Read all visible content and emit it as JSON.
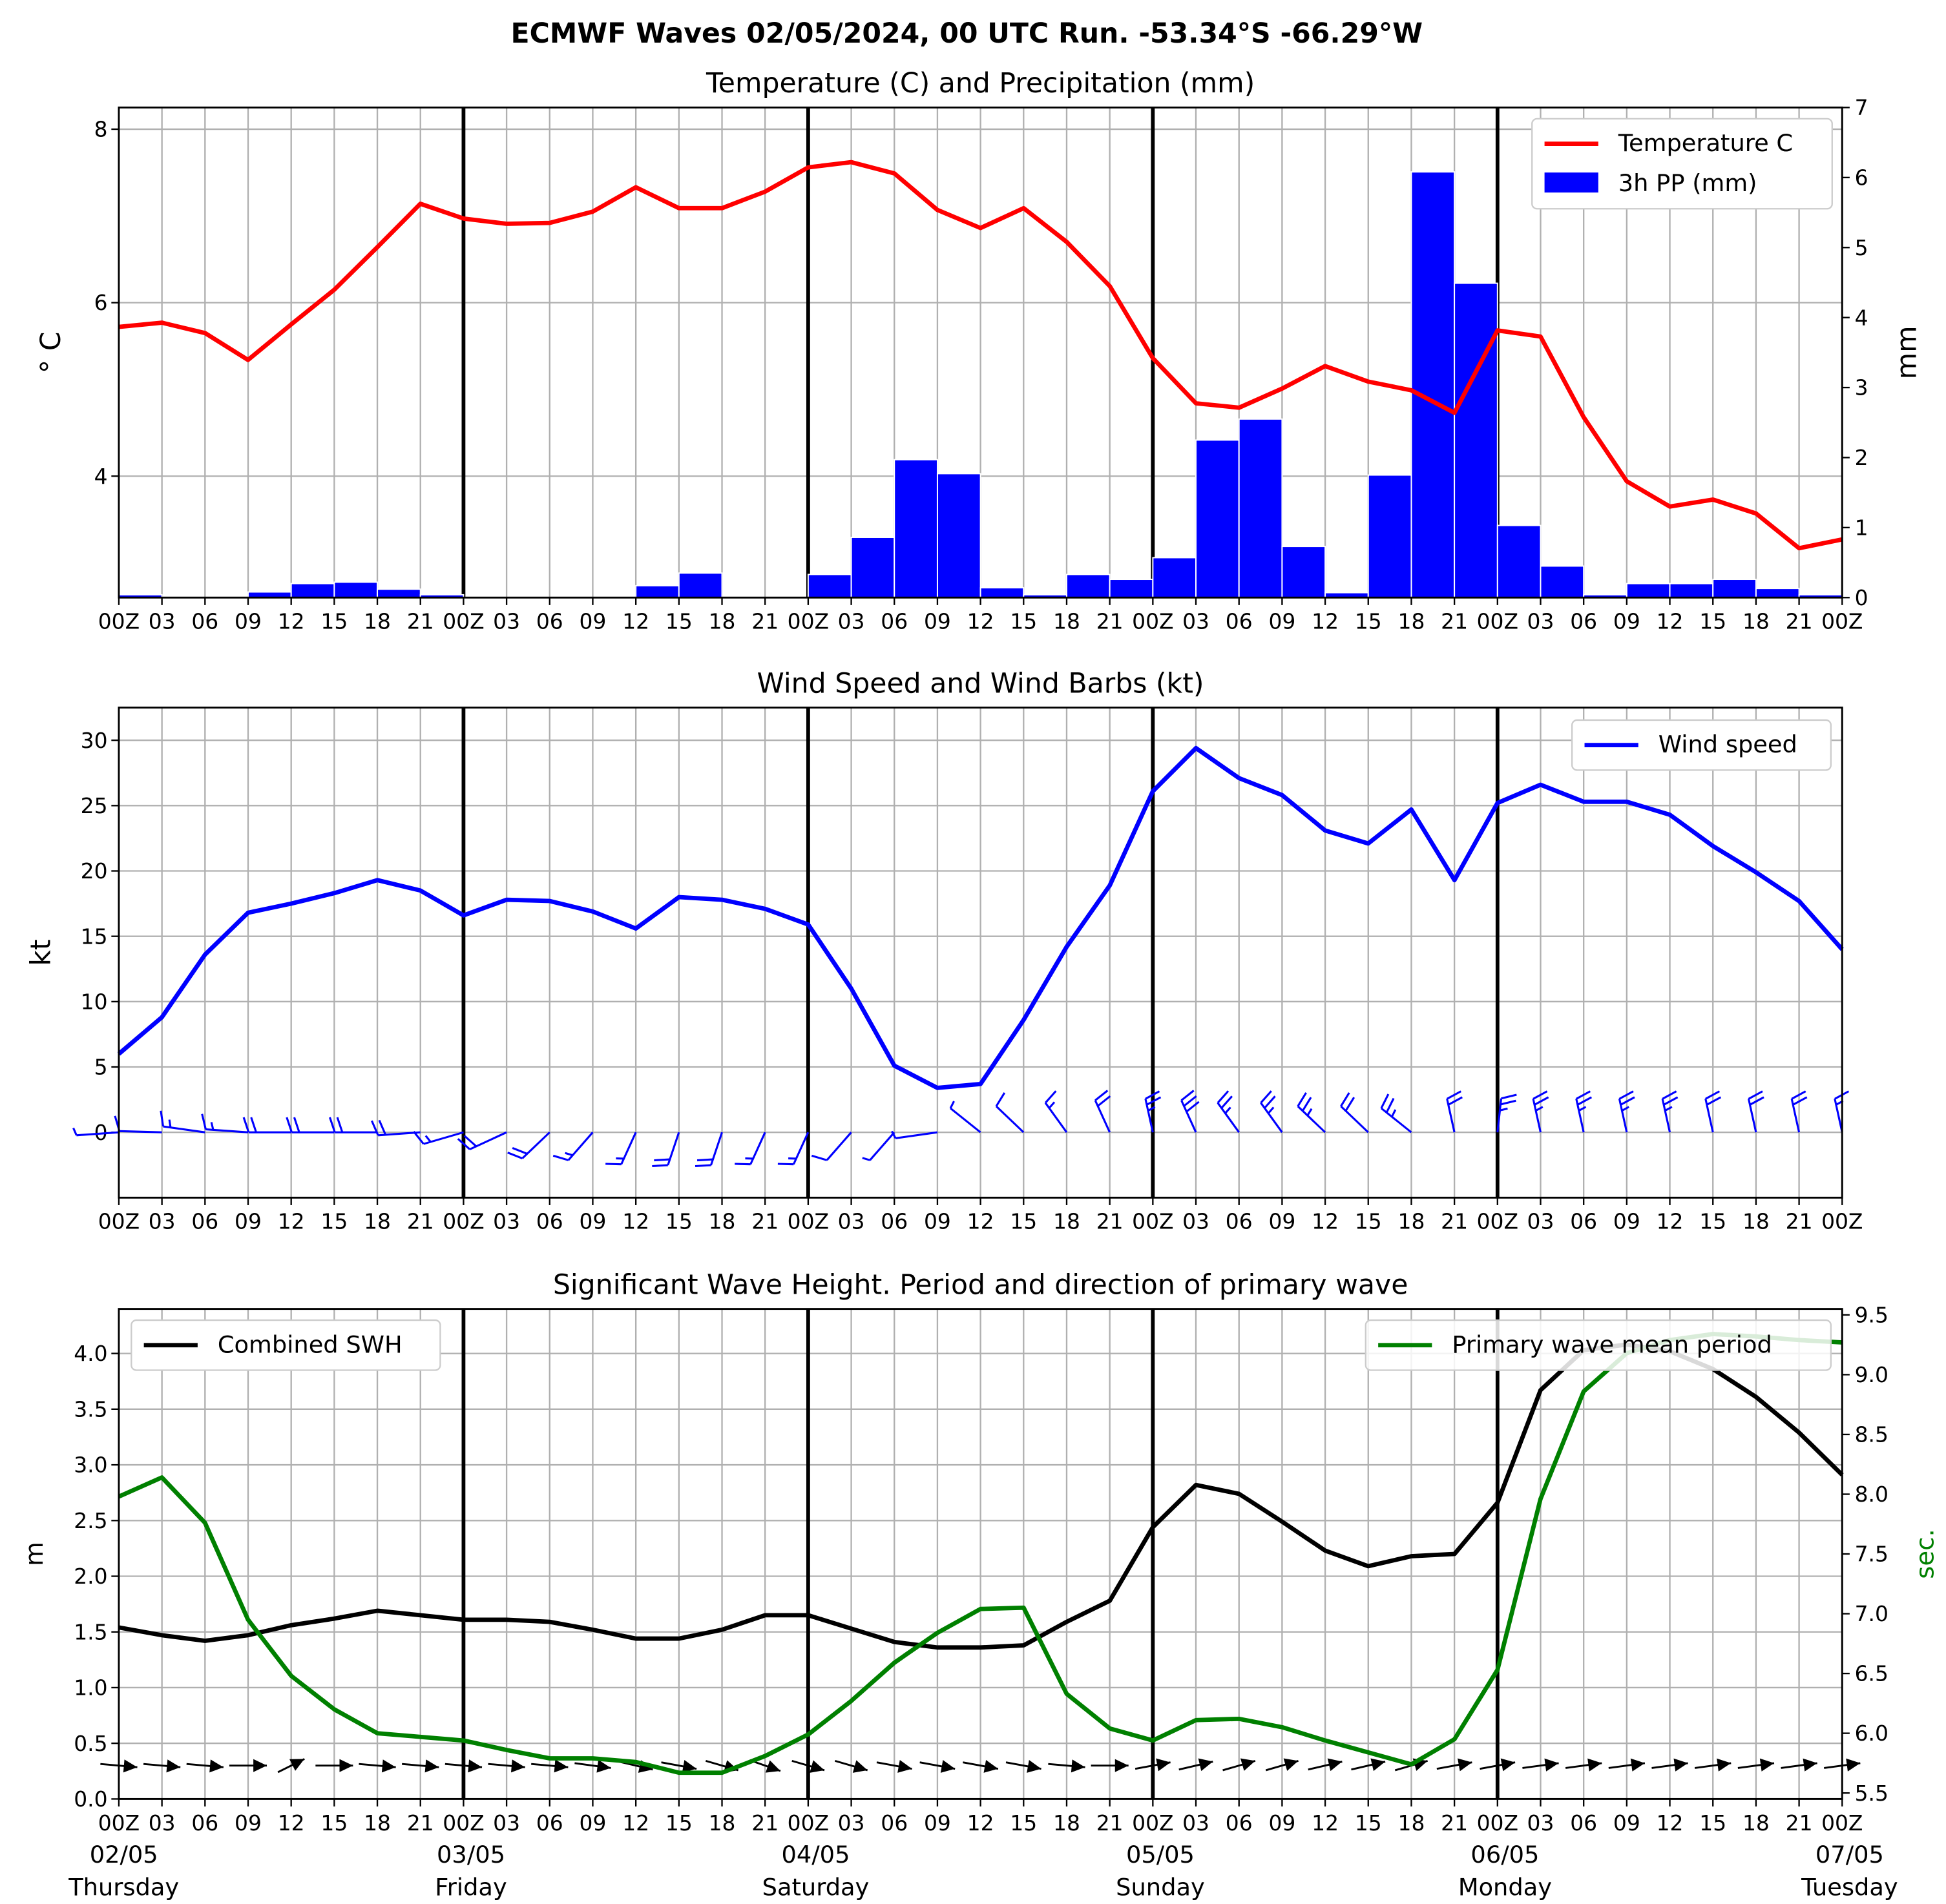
{
  "figure_title": "ECMWF Waves 02/05/2024, 00 UTC Run. -53.34°S -66.29°W",
  "hour_labels": [
    "00Z",
    "03",
    "06",
    "09",
    "12",
    "15",
    "18",
    "21",
    "00Z",
    "03",
    "06",
    "09",
    "12",
    "15",
    "18",
    "21",
    "00Z",
    "03",
    "06",
    "09",
    "12",
    "15",
    "18",
    "21",
    "00Z",
    "03",
    "06",
    "09",
    "12",
    "15",
    "18",
    "21",
    "00Z",
    "03",
    "06",
    "09",
    "12",
    "15",
    "18",
    "21",
    "00Z"
  ],
  "date_labels": [
    {
      "date": "02/05",
      "day": "Thursday"
    },
    {
      "date": "03/05",
      "day": "Friday"
    },
    {
      "date": "04/05",
      "day": "Saturday"
    },
    {
      "date": "05/05",
      "day": "Sunday"
    },
    {
      "date": "06/05",
      "day": "Monday"
    },
    {
      "date": "07/05",
      "day": "Tuesday"
    }
  ],
  "colors": {
    "temperature": "#ff0000",
    "precip": "#0000ff",
    "wind": "#0000ff",
    "swh": "#000000",
    "period": "#008000",
    "grid": "#b0b0b0"
  },
  "chart_data": [
    {
      "type": "line",
      "title": "Temperature (C) and Precipitation (mm)",
      "x_hours": [
        0,
        3,
        6,
        9,
        12,
        15,
        18,
        21,
        24,
        27,
        30,
        33,
        36,
        39,
        42,
        45,
        48,
        51,
        54,
        57,
        60,
        63,
        66,
        69,
        72,
        75,
        78,
        81,
        84,
        87,
        90,
        93,
        96,
        99,
        102,
        105,
        108,
        111,
        114,
        117,
        120
      ],
      "ylabel": "$^\\circ$C",
      "ylabel_display": "° C",
      "ylim": [
        2.6,
        8.25
      ],
      "yticks": [
        4,
        6,
        8
      ],
      "y2label": "mm",
      "y2lim": [
        0,
        7
      ],
      "y2ticks": [
        0,
        1,
        2,
        3,
        4,
        5,
        6,
        7
      ],
      "legend": "top-right",
      "series": [
        {
          "name": "Temperature C",
          "kind": "line",
          "values": [
            5.72,
            5.77,
            5.65,
            5.34,
            5.75,
            6.15,
            6.64,
            7.14,
            6.97,
            6.91,
            6.92,
            7.05,
            7.33,
            7.09,
            7.09,
            7.28,
            7.56,
            7.62,
            7.49,
            7.07,
            6.86,
            7.09,
            6.7,
            6.19,
            5.36,
            4.84,
            4.79,
            5.01,
            5.27,
            5.09,
            4.99,
            4.73,
            5.68,
            5.61,
            4.68,
            3.94,
            3.65,
            3.73,
            3.57,
            3.17,
            3.27
          ]
        },
        {
          "name": "3h PP (mm)",
          "kind": "bar",
          "values": [
            0.04,
            0,
            0,
            0.08,
            0.2,
            0.22,
            0.12,
            0.04,
            0,
            0,
            0,
            0,
            0.17,
            0.35,
            0,
            0,
            0.33,
            0.86,
            1.97,
            1.77,
            0.14,
            0.04,
            0.33,
            0.26,
            0.57,
            2.25,
            2.55,
            0.73,
            0.07,
            1.75,
            6.08,
            4.49,
            1.03,
            0.45,
            0.04,
            0.2,
            0.2,
            0.26,
            0.13,
            0.04
          ]
        }
      ]
    },
    {
      "type": "line",
      "title": "Wind Speed and Wind Barbs (kt)",
      "x_hours": [
        0,
        3,
        6,
        9,
        12,
        15,
        18,
        21,
        24,
        27,
        30,
        33,
        36,
        39,
        42,
        45,
        48,
        51,
        54,
        57,
        60,
        63,
        66,
        69,
        72,
        75,
        78,
        81,
        84,
        87,
        90,
        93,
        96,
        99,
        102,
        105,
        108,
        111,
        114,
        117,
        120
      ],
      "ylabel": "kt",
      "ylim": [
        -5,
        32.5
      ],
      "yticks": [
        0,
        5,
        10,
        15,
        20,
        25,
        30
      ],
      "legend": "top-right",
      "series": [
        {
          "name": "Wind speed",
          "values": [
            6.0,
            8.8,
            13.6,
            16.8,
            17.5,
            18.3,
            19.3,
            18.5,
            16.6,
            17.8,
            17.7,
            16.9,
            15.6,
            18.0,
            17.8,
            17.1,
            15.9,
            11.0,
            5.1,
            3.4,
            3.7,
            8.6,
            14.2,
            18.9,
            26.1,
            29.4,
            27.1,
            25.8,
            23.1,
            22.1,
            24.7,
            19.3,
            25.2,
            26.6,
            25.3,
            25.3,
            24.3,
            21.9,
            19.9,
            17.7,
            14.0
          ]
        }
      ],
      "barb_direction_deg": [
        265,
        272,
        280,
        275,
        270,
        270,
        270,
        265,
        250,
        240,
        220,
        215,
        200,
        195,
        195,
        200,
        200,
        215,
        215,
        260,
        315,
        320,
        330,
        340,
        350,
        340,
        330,
        330,
        320,
        320,
        315,
        350,
        5,
        350,
        350,
        350,
        350,
        350,
        350,
        350,
        350
      ]
    },
    {
      "type": "line",
      "title": "Significant Wave Height. Period and direction of primary wave",
      "x_hours": [
        0,
        3,
        6,
        9,
        12,
        15,
        18,
        21,
        24,
        27,
        30,
        33,
        36,
        39,
        42,
        45,
        48,
        51,
        54,
        57,
        60,
        63,
        66,
        69,
        72,
        75,
        78,
        81,
        84,
        87,
        90,
        93,
        96,
        99,
        102,
        105,
        108,
        111,
        114,
        117,
        120
      ],
      "ylabel": "m",
      "ylim": [
        0,
        4.4
      ],
      "yticks": [
        0.0,
        0.5,
        1.0,
        1.5,
        2.0,
        2.5,
        3.0,
        3.5,
        4.0
      ],
      "y2label": "sec.",
      "y2lim": [
        5.45,
        9.55
      ],
      "y2ticks": [
        5.5,
        6.0,
        6.5,
        7.0,
        7.5,
        8.0,
        8.5,
        9.0,
        9.5
      ],
      "legend_left": "top-left",
      "legend_right": "top-right",
      "series": [
        {
          "name": "Combined SWH",
          "axis": "left",
          "values": [
            1.54,
            1.47,
            1.42,
            1.47,
            1.56,
            1.62,
            1.69,
            1.65,
            1.61,
            1.61,
            1.59,
            1.52,
            1.44,
            1.44,
            1.52,
            1.65,
            1.65,
            1.53,
            1.41,
            1.36,
            1.36,
            1.38,
            1.59,
            1.78,
            2.44,
            2.82,
            2.74,
            2.49,
            2.23,
            2.09,
            2.18,
            2.2,
            2.66,
            3.67,
            4.03,
            4.08,
            4.02,
            3.86,
            3.61,
            3.29,
            2.91
          ]
        },
        {
          "name": "Primary wave mean period",
          "axis": "right",
          "values": [
            7.98,
            8.14,
            7.76,
            6.95,
            6.48,
            6.2,
            6.0,
            5.97,
            5.94,
            5.86,
            5.79,
            5.79,
            5.76,
            5.67,
            5.67,
            5.81,
            5.99,
            6.27,
            6.59,
            6.84,
            7.04,
            7.05,
            6.33,
            6.04,
            5.94,
            6.11,
            6.12,
            6.05,
            5.94,
            5.84,
            5.74,
            5.95,
            6.53,
            7.96,
            8.86,
            9.18,
            9.29,
            9.34,
            9.32,
            9.29,
            9.27
          ]
        }
      ],
      "wave_direction_deg": [
        280,
        280,
        280,
        270,
        225,
        270,
        280,
        280,
        280,
        280,
        280,
        285,
        295,
        290,
        300,
        305,
        300,
        300,
        290,
        290,
        290,
        290,
        280,
        270,
        250,
        245,
        240,
        240,
        245,
        245,
        240,
        250,
        250,
        255,
        255,
        255,
        255,
        255,
        255,
        255,
        255
      ]
    }
  ]
}
